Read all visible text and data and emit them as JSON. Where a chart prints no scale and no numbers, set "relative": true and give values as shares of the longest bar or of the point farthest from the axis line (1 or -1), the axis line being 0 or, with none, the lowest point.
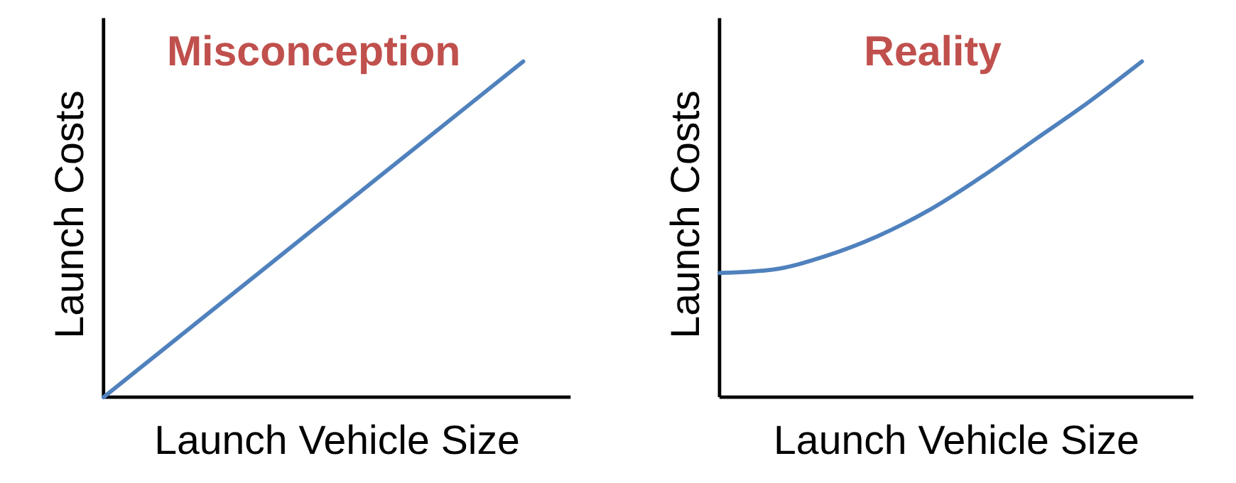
{
  "chart_data": [
    {
      "type": "line",
      "title": "Misconception",
      "xlabel": "Launch Vehicle Size",
      "ylabel": "Launch  Costs",
      "relative": true,
      "categories": [
        null,
        null,
        null,
        null,
        null
      ],
      "series": [
        {
          "color": "#4f81bd",
          "values": [
            0,
            0.25,
            0.5,
            0.75,
            1
          ]
        }
      ]
    },
    {
      "type": "line",
      "title": "Reality",
      "xlabel": "Launch Vehicle Size",
      "ylabel": "Launch  Costs",
      "relative": true,
      "categories": [
        null,
        null,
        null,
        null,
        null,
        null,
        null,
        null,
        null
      ],
      "series": [
        {
          "color": "#4f81bd",
          "values": [
            0.37,
            0.38,
            0.42,
            0.48,
            0.56,
            0.66,
            0.77,
            0.88,
            1
          ]
        }
      ]
    }
  ]
}
